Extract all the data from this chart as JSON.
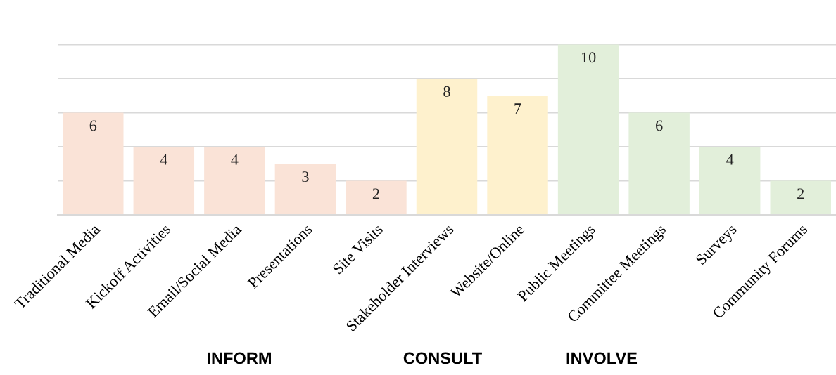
{
  "chart_data": {
    "type": "bar",
    "categories": [
      "Traditional Media",
      "Kickoff Activities",
      "Email/Social Media",
      "Presentations",
      "Site Visits",
      "Stakeholder Interviews",
      "Website/Online",
      "Public Meetings",
      "Committee Meetings",
      "Surveys",
      "Community Forums"
    ],
    "values": [
      6,
      4,
      4,
      3,
      2,
      8,
      7,
      10,
      6,
      4,
      2
    ],
    "colors": [
      "#fae3d7",
      "#fae3d7",
      "#fae3d7",
      "#fae3d7",
      "#fae3d7",
      "#fef1cd",
      "#fef1cd",
      "#e2efda",
      "#e2efda",
      "#e2efda",
      "#e2efda"
    ],
    "ylim": [
      0,
      12
    ],
    "yticks": [
      {
        "value": 0,
        "label": null
      },
      {
        "value": 2,
        "label": null
      },
      {
        "value": 4,
        "label": null
      },
      {
        "value": 6,
        "label": null
      },
      {
        "value": 8,
        "label": null
      },
      {
        "value": 10,
        "label": null
      },
      {
        "value": 12,
        "label": null
      }
    ],
    "grid": "y",
    "tick_labels": "x",
    "data_labels": true,
    "annotations": [
      "INFORM",
      "CONSULT",
      "INVOLVE"
    ]
  }
}
